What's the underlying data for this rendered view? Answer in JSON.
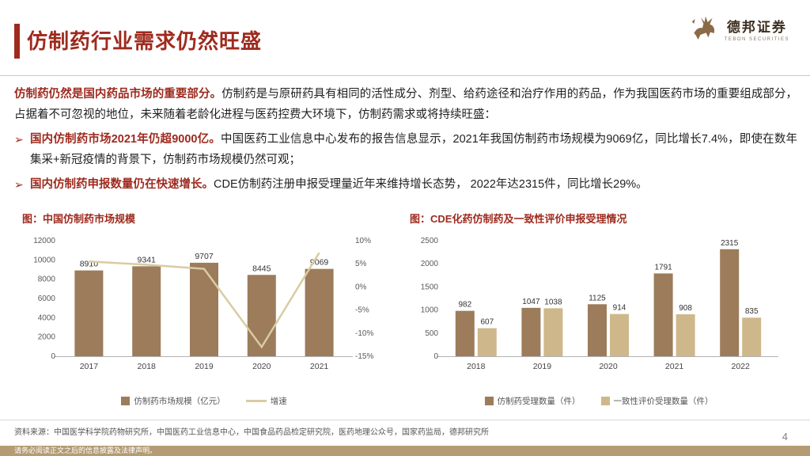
{
  "colors": {
    "accent_red": "#9E2A1E",
    "bar_brown": "#9C7C5B",
    "bar_tan": "#CEB88B",
    "line_tan": "#DACBA1",
    "strip_tan": "#B49B74",
    "axis_text": "#595959"
  },
  "header": {
    "title": "仿制药行业需求仍然旺盛",
    "logo_cn": "德邦证券",
    "logo_en": "TEBON SECURITIES"
  },
  "body": {
    "para1_lead": "仿制药仍然是国内药品市场的重要部分。",
    "para1_text": "仿制药是与原研药具有相同的活性成分、剂型、给药途径和治疗作用的药品，作为我国医药市场的重要组成部分，占据着不可忽视的地位，未来随着老龄化进程与医药控费大环境下，仿制药需求或将持续旺盛：",
    "bullets": [
      {
        "lead": "国内仿制药市场2021年仍超9000亿。",
        "text": "中国医药工业信息中心发布的报告信息显示，2021年我国仿制药市场规模为9069亿，同比增长7.4%，即使在数年集采+新冠疫情的背景下，仿制药市场规模仍然可观；"
      },
      {
        "lead": "国内仿制药申报数量仍在快速增长。",
        "text": "CDE仿制药注册申报受理量近年来维持增长态势， 2022年达2315件，同比增长29%。"
      }
    ]
  },
  "chart_data": [
    {
      "type": "bar",
      "title": "图：中国仿制药市场规模",
      "categories": [
        "2017",
        "2018",
        "2019",
        "2020",
        "2021"
      ],
      "series": [
        {
          "name": "仿制药市场规模（亿元）",
          "kind": "bar",
          "axis": "left",
          "values": [
            8910,
            9341,
            9707,
            8445,
            9069
          ]
        },
        {
          "name": "增速",
          "kind": "line",
          "axis": "right",
          "values": [
            5.5,
            4.8,
            3.9,
            -13.0,
            7.4
          ]
        }
      ],
      "left_axis": {
        "min": 0,
        "max": 12000,
        "step": 2000
      },
      "right_axis": {
        "min": -15,
        "max": 10,
        "step": 5,
        "suffix": "%"
      },
      "legend_position": "bottom",
      "grid": false
    },
    {
      "type": "bar",
      "title": "图：CDE化药仿制药及一致性评价申报受理情况",
      "categories": [
        "2018",
        "2019",
        "2020",
        "2021",
        "2022"
      ],
      "series": [
        {
          "name": "仿制药受理数量（件）",
          "values": [
            982,
            1047,
            1125,
            1791,
            2315
          ]
        },
        {
          "name": "一致性评价受理数量（件）",
          "values": [
            607,
            1038,
            914,
            908,
            835
          ]
        }
      ],
      "y_axis": {
        "min": 0,
        "max": 2500,
        "step": 500
      },
      "legend_position": "bottom",
      "grid": false
    }
  ],
  "footer": {
    "source": "资料来源：中国医学科学院药物研究所，中国医药工业信息中心，中国食品药品检定研究院，医药地理公众号，国家药监局，德邦研究所",
    "disclaimer": "请务必阅读正文之后的信息披露及法律声明。",
    "page": "4"
  }
}
